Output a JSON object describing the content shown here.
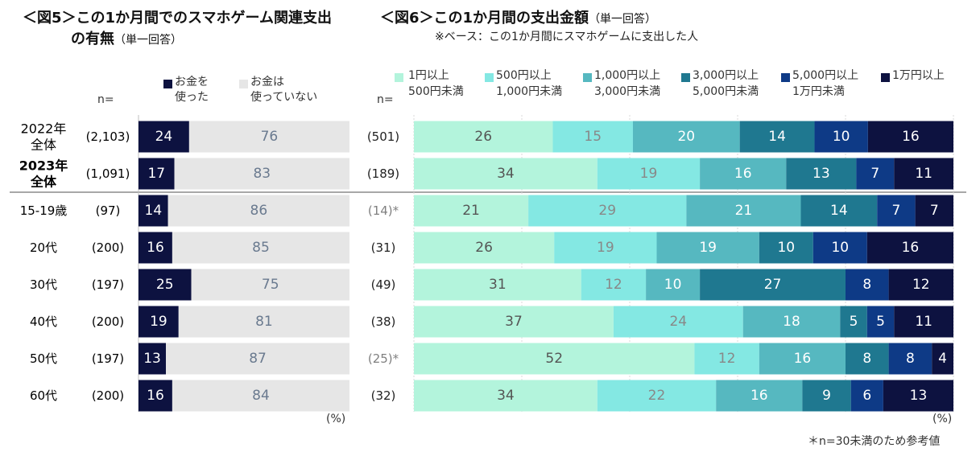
{
  "fig5": {
    "title_line1": "＜図5＞この1か月間でのスマホゲーム関連支出",
    "title_line2": "の有無",
    "title_sub": "（単一回答）",
    "n_header": "n=",
    "pct_label": "(%)",
    "legend": [
      {
        "label_1": "お金を",
        "label_2": "使った",
        "color": "#0d1240"
      },
      {
        "label_1": "お金は",
        "label_2": "使っていない",
        "color": "#e6e6e6"
      }
    ]
  },
  "fig6": {
    "title": "＜図6＞この1か月間の支出金額",
    "title_sub": "（単一回答）",
    "base_note": "※ベース：この1か月間にスマホゲームに支出した人",
    "n_header": "n=",
    "pct_label": "(%)",
    "footnote": "＊n=30未満のため参考値",
    "legend": [
      {
        "label_1": "1円以上",
        "label_2": "500円未満",
        "color": "#b3f4dc"
      },
      {
        "label_1": "500円以上",
        "label_2": "1,000円未満",
        "color": "#84e8e3"
      },
      {
        "label_1": "1,000円以上",
        "label_2": "3,000円未満",
        "color": "#56b8c0"
      },
      {
        "label_1": "3,000円以上",
        "label_2": "5,000円未満",
        "color": "#1f7890"
      },
      {
        "label_1": "5,000円以上",
        "label_2": "1万円未満",
        "color": "#0e3a86"
      },
      {
        "label_1": "1万円以上",
        "label_2": "",
        "color": "#0d1240"
      }
    ]
  },
  "chart_data": [
    {
      "type": "bar",
      "orientation": "horizontal-stacked",
      "title": "＜図5＞この1か月間でのスマホゲーム関連支出の有無（単一回答）",
      "categories": [
        "2022年全体",
        "2023年全体",
        "15-19歳",
        "20代",
        "30代",
        "40代",
        "50代",
        "60代"
      ],
      "category_lines": [
        [
          "2022年",
          "全体"
        ],
        [
          "2023年",
          "全体"
        ],
        [
          "15-19歳"
        ],
        [
          "20代"
        ],
        [
          "30代"
        ],
        [
          "40代"
        ],
        [
          "50代"
        ],
        [
          "60代"
        ]
      ],
      "bold_categories": [
        1
      ],
      "n": [
        "(2,103)",
        "(1,091)",
        "(97)",
        "(200)",
        "(197)",
        "(200)",
        "(197)",
        "(200)"
      ],
      "series": [
        {
          "name": "お金を使った",
          "values": [
            24,
            17,
            14,
            16,
            25,
            19,
            13,
            16
          ]
        },
        {
          "name": "お金は使っていない",
          "values": [
            76,
            83,
            86,
            85,
            75,
            81,
            87,
            84
          ]
        }
      ],
      "unit": "%",
      "xlim": [
        0,
        100
      ]
    },
    {
      "type": "bar",
      "orientation": "horizontal-stacked",
      "title": "＜図6＞この1か月間の支出金額（単一回答）",
      "categories": [
        "2022年全体",
        "2023年全体",
        "15-19歳",
        "20代",
        "30代",
        "40代",
        "50代",
        "60代"
      ],
      "n": [
        "(501)",
        "(189)",
        "(14)*",
        "(31)",
        "(49)",
        "(38)",
        "(25)*",
        "(32)"
      ],
      "reference_rows": [
        2,
        6
      ],
      "series": [
        {
          "name": "1円以上500円未満",
          "values": [
            26,
            34,
            21,
            26,
            31,
            37,
            52,
            34
          ]
        },
        {
          "name": "500円以上1,000円未満",
          "values": [
            15,
            19,
            29,
            19,
            12,
            24,
            12,
            22
          ]
        },
        {
          "name": "1,000円以上3,000円未満",
          "values": [
            20,
            16,
            21,
            19,
            10,
            18,
            16,
            16
          ]
        },
        {
          "name": "3,000円以上5,000円未満",
          "values": [
            14,
            13,
            14,
            10,
            27,
            5,
            8,
            9
          ]
        },
        {
          "name": "5,000円以上1万円未満",
          "values": [
            10,
            7,
            7,
            10,
            8,
            5,
            8,
            6
          ]
        },
        {
          "name": "1万円以上",
          "values": [
            16,
            11,
            7,
            16,
            12,
            11,
            4,
            13
          ]
        }
      ],
      "unit": "%",
      "xlim": [
        0,
        100
      ]
    }
  ]
}
